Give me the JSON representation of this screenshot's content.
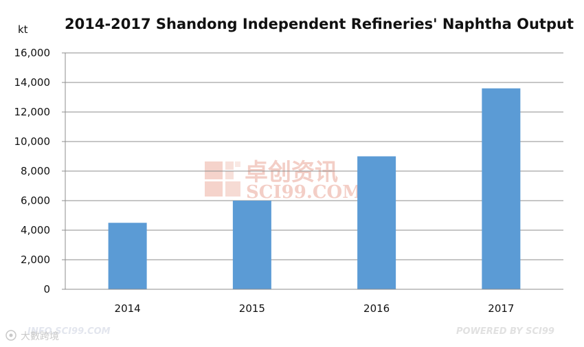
{
  "chart_data": {
    "type": "bar",
    "title": "2014-2017 Shandong Independent Refineries' Naphtha Output",
    "ylabel": "kt",
    "xlabel": "",
    "categories": [
      "2014",
      "2015",
      "2016",
      "2017"
    ],
    "values": [
      4500,
      6000,
      9000,
      13600
    ],
    "ylim": [
      0,
      16000
    ],
    "yticks": [
      "0",
      "2,000",
      "4,000",
      "6,000",
      "8,000",
      "10,000",
      "12,000",
      "14,000",
      "16,000"
    ],
    "ytick_values": [
      0,
      2000,
      4000,
      6000,
      8000,
      10000,
      12000,
      14000,
      16000
    ],
    "grid": true,
    "legend": "none",
    "bar_color": "#5b9bd5"
  },
  "watermarks": {
    "center_cn": "卓创资讯",
    "center_en": "SCI99.COM",
    "footer_left": "大數跨境",
    "footer_left_faint": "INFO.SCI99.COM",
    "footer_right": "POWERED BY SCI99"
  },
  "colors": {
    "watermark": "#f2c9c0",
    "watermark_gray": "#d9d9d9"
  }
}
